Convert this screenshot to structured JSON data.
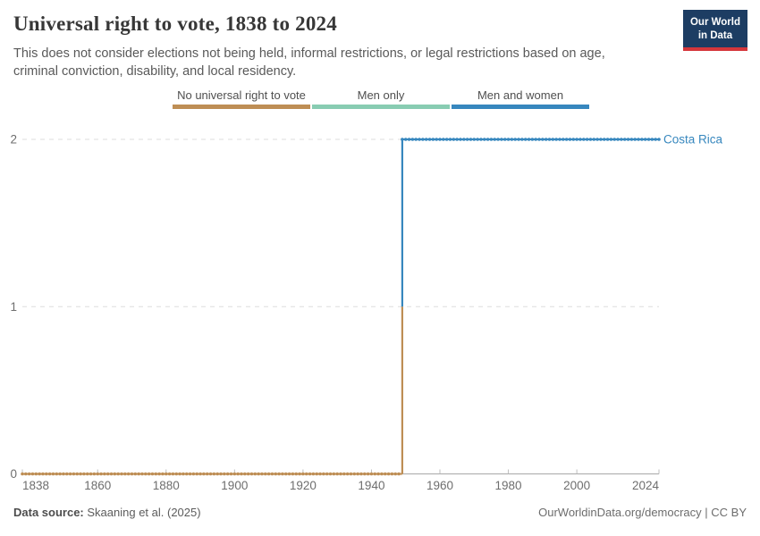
{
  "header": {
    "title": "Universal right to vote, 1838 to 2024",
    "subtitle": "This does not consider elections not being held, informal restrictions, or legal restrictions based on age, criminal conviction, disability, and local residency.",
    "logo": {
      "line1": "Our World",
      "line2": "in Data",
      "bg_color": "#1D3D63",
      "accent_color": "#D5363B"
    }
  },
  "legend": {
    "items": [
      {
        "label": "No universal right to vote",
        "color": "#BE8E55"
      },
      {
        "label": "Men only",
        "color": "#88CCB2"
      },
      {
        "label": "Men and women",
        "color": "#3787BE"
      }
    ]
  },
  "chart_data": {
    "type": "line",
    "subtype": "step",
    "title": "Universal right to vote, 1838 to 2024",
    "entity": "Costa Rica",
    "entity_color": "#3787BE",
    "xlim": [
      1838,
      2024
    ],
    "ylim": [
      0,
      2
    ],
    "x_ticks": [
      1838,
      1860,
      1880,
      1900,
      1920,
      1940,
      1960,
      1980,
      2000,
      2024
    ],
    "y_ticks": [
      0,
      1,
      2
    ],
    "grid": true,
    "legend_position": "top",
    "series": [
      {
        "name": "Costa Rica",
        "transition_year": 1949,
        "segments": [
          {
            "category": "No universal right to vote",
            "value": 0,
            "start_year": 1838,
            "end_year": 1948,
            "color": "#BE8E55"
          },
          {
            "category": "Men and women",
            "value": 2,
            "start_year": 1949,
            "end_year": 2024,
            "color": "#3787BE"
          }
        ]
      }
    ],
    "colors": {
      "axis": "#a8a8a8",
      "tick": "#bdbdbd",
      "grid": "#dddddd",
      "tick_text": "#6e6e6e"
    }
  },
  "footer": {
    "source_label": "Data source:",
    "source_text": "Skaaning et al. (2025)",
    "credit": "OurWorldinData.org/democracy | CC BY"
  }
}
